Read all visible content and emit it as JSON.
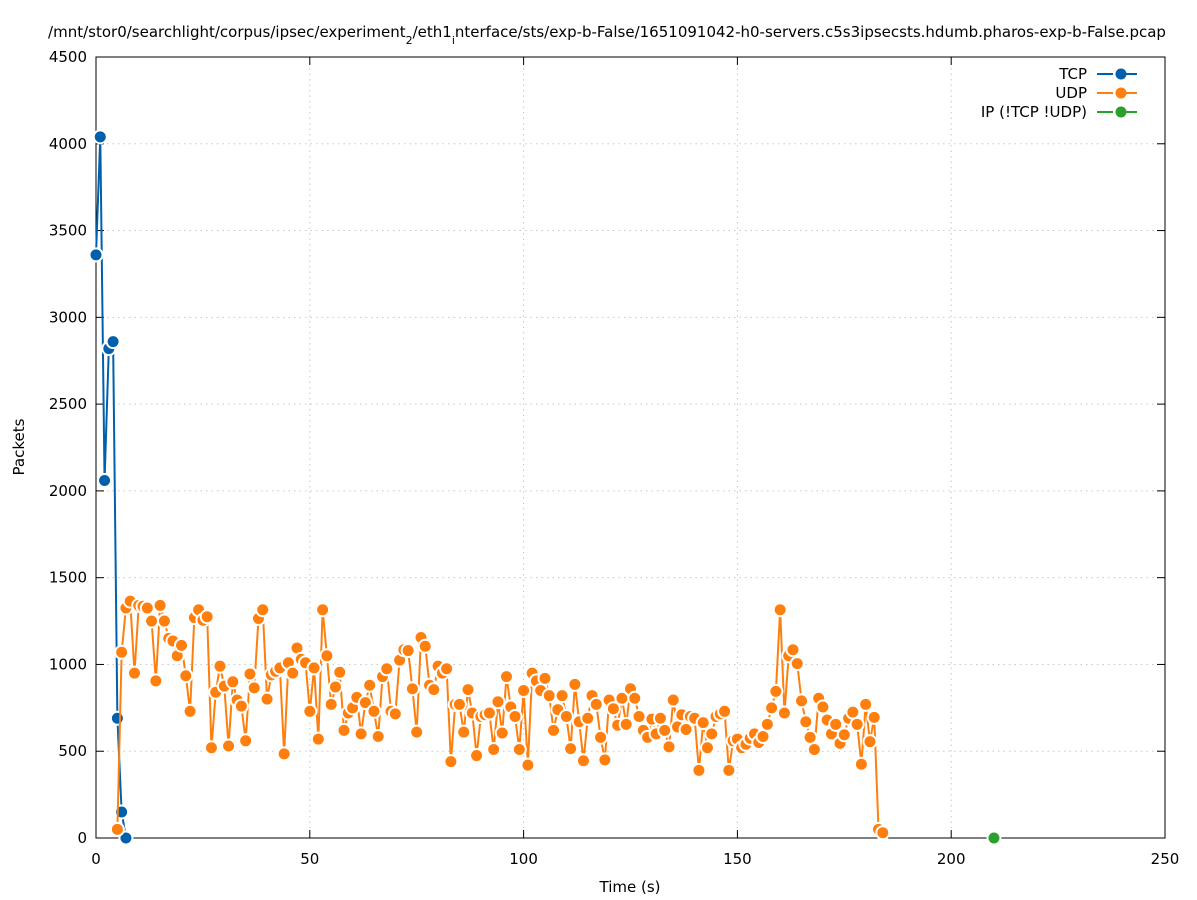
{
  "chart_data": {
    "type": "line",
    "title": "/mnt/stor0/searchlight/corpus/ipsec/experiment_2/eth1_interface/sts/exp-b-False/1651091042-h0-servers.c5s3ipsecsts.hdumb.pharos-exp-b-False.pcap",
    "xlabel": "Time (s)",
    "ylabel": "Packets",
    "xlim": [
      0,
      250
    ],
    "ylim": [
      0,
      4500
    ],
    "xticks": [
      0,
      50,
      100,
      150,
      200,
      250
    ],
    "yticks": [
      0,
      500,
      1000,
      1500,
      2000,
      2500,
      3000,
      3500,
      4000,
      4500
    ],
    "grid": true,
    "legend_position": "top-right",
    "series": [
      {
        "name": "TCP",
        "color": "#0060ad",
        "x_start": 0,
        "values": [
          3360,
          4040,
          2060,
          2820,
          2860,
          690,
          150,
          0
        ]
      },
      {
        "name": "UDP",
        "color": "#ff7f0e",
        "x_start": 5,
        "values": [
          50,
          1070,
          1325,
          1365,
          950,
          1340,
          1335,
          1325,
          1250,
          905,
          1340,
          1250,
          1150,
          1135,
          1050,
          1110,
          935,
          730,
          1270,
          1315,
          1255,
          1275,
          520,
          840,
          990,
          875,
          530,
          900,
          795,
          760,
          560,
          945,
          865,
          1265,
          1315,
          800,
          940,
          960,
          980,
          485,
          1010,
          950,
          1095,
          1030,
          1010,
          730,
          980,
          570,
          1315,
          1050,
          770,
          870,
          955,
          620,
          720,
          750,
          810,
          600,
          780,
          880,
          730,
          585,
          930,
          975,
          730,
          715,
          1025,
          1085,
          1080,
          860,
          610,
          1155,
          1105,
          880,
          855,
          990,
          950,
          975,
          440,
          770,
          770,
          610,
          855,
          720,
          475,
          700,
          710,
          720,
          510,
          785,
          605,
          930,
          755,
          700,
          510,
          850,
          420,
          950,
          905,
          850,
          920,
          820,
          620,
          740,
          820,
          700,
          515,
          885,
          670,
          445,
          690,
          820,
          770,
          580,
          450,
          795,
          745,
          650,
          805,
          655,
          860,
          805,
          700,
          620,
          580,
          685,
          600,
          690,
          620,
          525,
          795,
          640,
          710,
          625,
          700,
          690,
          390,
          665,
          520,
          600,
          700,
          715,
          730,
          390,
          560,
          570,
          520,
          540,
          575,
          600,
          550,
          585,
          655,
          750,
          845,
          1315,
          720,
          1050,
          1085,
          1005,
          790,
          670,
          580,
          510,
          805,
          755,
          680,
          600,
          655,
          545,
          595,
          690,
          725,
          655,
          425,
          770,
          555,
          695,
          50,
          30
        ]
      },
      {
        "name": "IP (!TCP  !UDP)",
        "color": "#2ca02c",
        "x_start": 210,
        "values": [
          0
        ]
      }
    ]
  }
}
